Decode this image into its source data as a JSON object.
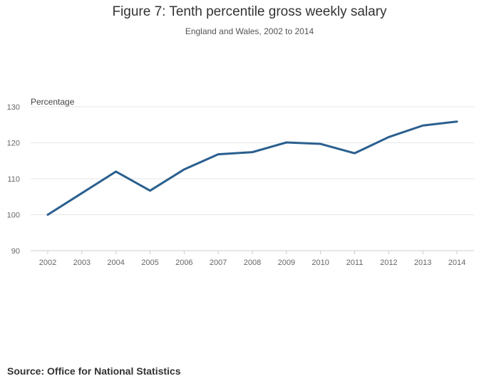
{
  "title": "Figure 7: Tenth percentile gross weekly salary",
  "subtitle": "England and Wales, 2002 to 2014",
  "source": "Source: Office for National Statistics",
  "colors": {
    "line": "#2a5f8f",
    "grid": "#e6e6e6",
    "axis": "#cccccc"
  },
  "chart_data": {
    "type": "line",
    "title": "Figure 7: Tenth percentile gross weekly salary",
    "subtitle": "England and Wales, 2002 to 2014",
    "xlabel": "",
    "ylabel": "Percentage",
    "ylim": [
      90,
      130
    ],
    "yticks": [
      90,
      100,
      110,
      120,
      130
    ],
    "grid": true,
    "x": [
      "2002",
      "2003",
      "2004",
      "2005",
      "2006",
      "2007",
      "2008",
      "2009",
      "2010",
      "2011",
      "2012",
      "2013",
      "2014"
    ],
    "series": [
      {
        "name": "Tenth percentile gross weekly salary",
        "values": [
          100,
          106,
          112,
          106.7,
          112.6,
          116.8,
          117.4,
          120.1,
          119.7,
          117.1,
          121.6,
          124.8,
          125.9
        ]
      }
    ]
  }
}
